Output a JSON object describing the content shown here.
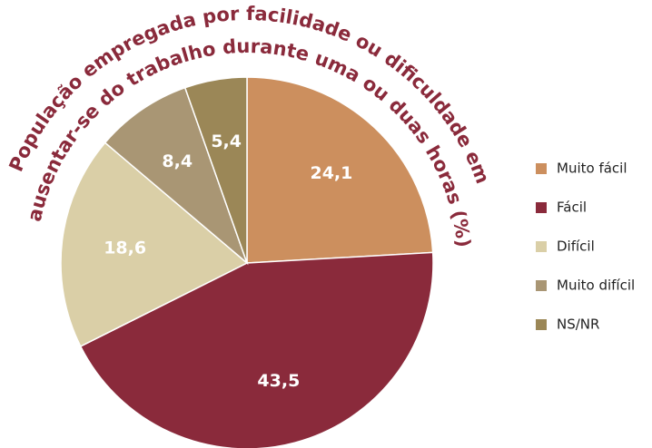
{
  "chart_data": {
    "type": "pie",
    "title": [
      "População empregada por facilidade ou dificuldade em",
      "ausentar-se do trabalho durante uma ou duas horas (%)"
    ],
    "categories": [
      "Muito fácil",
      "Fácil",
      "Difícil",
      "Muito difícil",
      "NS/NR"
    ],
    "values": [
      24.1,
      43.5,
      18.6,
      8.4,
      5.4
    ],
    "value_labels": [
      "24,1",
      "43,5",
      "18,6",
      "8,4",
      "5,4"
    ],
    "colors": [
      "#cc8f5e",
      "#8a2a3b",
      "#dacfa7",
      "#a99674",
      "#9b8757"
    ],
    "legend": "right"
  }
}
